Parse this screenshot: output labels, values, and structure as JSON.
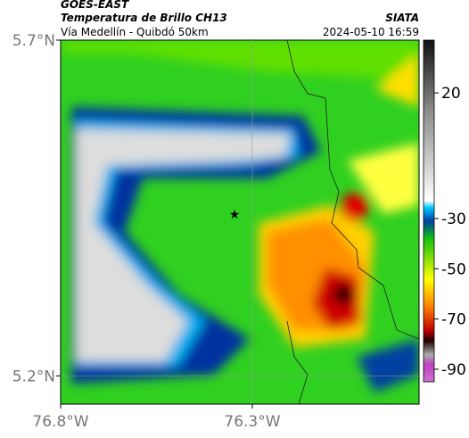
{
  "header": {
    "title": "GOES-EAST",
    "subtitle": "Temperatura de Brillo CH13",
    "region": "Vía Medellín - Quibdó 50km",
    "source": "SIATA",
    "timestamp": "2024-05-10 16:59"
  },
  "map": {
    "xlim": [
      -76.8,
      -75.865
    ],
    "ylim": [
      5.158,
      5.7
    ],
    "xticks": [
      {
        "value": -76.8,
        "label": "76.8°W"
      },
      {
        "value": -76.3,
        "label": "76.3°W"
      }
    ],
    "yticks": [
      {
        "value": 5.2,
        "label": "5.2°N"
      },
      {
        "value": 5.7,
        "label": "5.7°N"
      }
    ],
    "grid": true
  },
  "colorbar": {
    "lim": [
      41,
      -95
    ],
    "ticks": [
      20,
      -30,
      -50,
      -70,
      -90
    ]
  }
}
